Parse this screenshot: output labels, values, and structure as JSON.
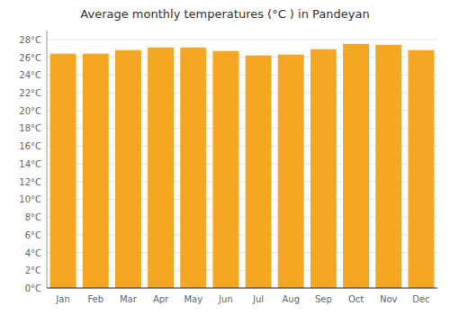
{
  "chart_data": {
    "type": "bar",
    "title": "Average monthly temperatures (°C ) in Pandeyan",
    "categories": [
      "Jan",
      "Feb",
      "Mar",
      "Apr",
      "May",
      "Jun",
      "Jul",
      "Aug",
      "Sep",
      "Oct",
      "Nov",
      "Dec"
    ],
    "values": [
      26.4,
      26.4,
      26.8,
      27.1,
      27.1,
      26.7,
      26.2,
      26.3,
      26.9,
      27.5,
      27.4,
      26.8
    ],
    "color": "#F5A623",
    "ylim": [
      0,
      29
    ],
    "yticks": [
      {
        "value": 0,
        "label": "0°C"
      },
      {
        "value": 2,
        "label": "2°C"
      },
      {
        "value": 4,
        "label": "4°C"
      },
      {
        "value": 6,
        "label": "6°C"
      },
      {
        "value": 8,
        "label": "8°C"
      },
      {
        "value": 10,
        "label": "10°C"
      },
      {
        "value": 12,
        "label": "12°C"
      },
      {
        "value": 14,
        "label": "14°C"
      },
      {
        "value": 16,
        "label": "16°C"
      },
      {
        "value": 18,
        "label": "18°C"
      },
      {
        "value": 20,
        "label": "20°C"
      },
      {
        "value": 22,
        "label": "22°C"
      },
      {
        "value": 24,
        "label": "24°C"
      },
      {
        "value": 26,
        "label": "26°C"
      },
      {
        "value": 28,
        "label": "28°C"
      }
    ],
    "grid": true
  }
}
